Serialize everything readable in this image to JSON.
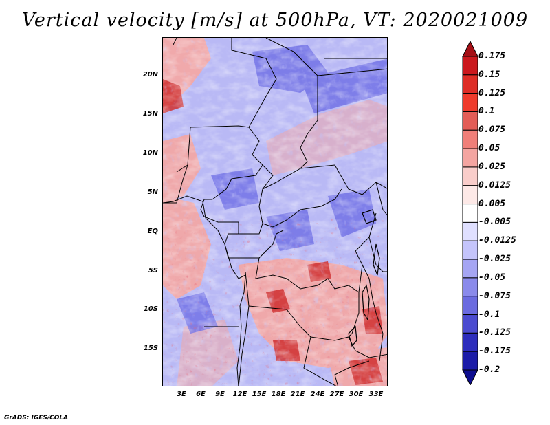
{
  "title": "Vertical velocity [m/s] at 500hPa, VT: 2020021009",
  "credit": "GrADS: IGES/COLA",
  "map": {
    "lat_labels": [
      "20N",
      "15N",
      "10N",
      "5N",
      "EQ",
      "5S",
      "10S",
      "15S"
    ],
    "lon_labels": [
      "3E",
      "6E",
      "9E",
      "12E",
      "15E",
      "18E",
      "21E",
      "24E",
      "27E",
      "30E",
      "33E"
    ]
  },
  "colorbar": {
    "labels": [
      "0.175",
      "0.15",
      "0.125",
      "0.1",
      "0.075",
      "0.05",
      "0.025",
      "0.0125",
      "0.005",
      "-0.005",
      "-0.0125",
      "-0.025",
      "-0.05",
      "-0.075",
      "-0.1",
      "-0.125",
      "-0.175",
      "-0.2"
    ],
    "colors": [
      "#a50f15",
      "#cb181d",
      "#de2d26",
      "#ef3b2c",
      "#e35d57",
      "#f07f79",
      "#f4a5a1",
      "#f9cdca",
      "#fde9e7",
      "#ffffff",
      "#e0e0ff",
      "#c4c4fb",
      "#a5a5f3",
      "#8a8aeb",
      "#6b6be0",
      "#4b4bd0",
      "#2d2dbd",
      "#1c1ca8",
      "#0d0d8f"
    ]
  }
}
